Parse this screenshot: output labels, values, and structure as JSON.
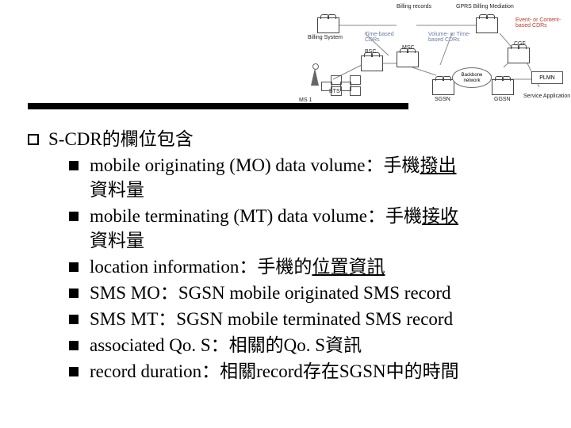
{
  "rule_color": "#000000",
  "outer_title": "S-CDR的欄位包含",
  "items": [
    {
      "plain": "mobile originating (MO) data volume：手機",
      "u": "撥出",
      "tail": "資料量"
    },
    {
      "plain": "mobile terminating (MT) data volume：手機",
      "u": "接收",
      "tail": "資料量"
    },
    {
      "plain": "location information：手機的",
      "u": "位置資訊",
      "tail": ""
    },
    {
      "plain": "SMS MO：SGSN mobile originated SMS record",
      "u": "",
      "tail": ""
    },
    {
      "plain": "SMS MT：SGSN mobile terminated SMS record",
      "u": "",
      "tail": ""
    },
    {
      "plain": "associated Qo. S：相關的Qo. S資訊",
      "u": "",
      "tail": ""
    },
    {
      "plain": "record duration：相關record存在SGSN中的時間",
      "u": "",
      "tail": ""
    }
  ],
  "diagram": {
    "labels": {
      "billing_records": "Billing records",
      "gprs_mediation": "GPRS Billing Mediation",
      "billing_system": "Billing System",
      "time_cdr": "Time-based CDRs",
      "vol_time_cdr": "Volume- or Time-based CDRs",
      "event_cdr": "Event- or Content-based CDRs",
      "bsc": "BSC",
      "msc": "MSC",
      "bts": "BTS",
      "sgsn": "SGSN",
      "ggsn": "GGSN",
      "cgf": "CGF",
      "ms1": "MS 1",
      "backbone": "Backbone network",
      "plmn": "PLMN",
      "service_app": "Service Application"
    }
  }
}
